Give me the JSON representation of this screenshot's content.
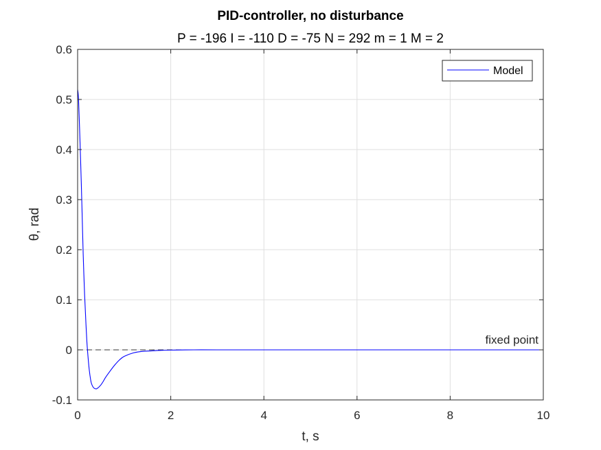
{
  "chart_data": {
    "type": "line",
    "title": "PID-controller, no disturbance",
    "subtitle": "P = -196 I = -110 D = -75 N = 292 m = 1 M = 2",
    "xlabel": "t, s",
    "ylabel": "θ, rad",
    "xlim": [
      0,
      10
    ],
    "ylim": [
      -0.1,
      0.6
    ],
    "xticks": [
      "0",
      "2",
      "4",
      "6",
      "8",
      "10"
    ],
    "yticks": [
      "-0.1",
      "0",
      "0.1",
      "0.2",
      "0.3",
      "0.4",
      "0.5",
      "0.6"
    ],
    "grid": true,
    "legend_position": "top-right",
    "series": [
      {
        "name": "Model",
        "color": "#0000ff",
        "x": [
          0,
          0.02,
          0.05,
          0.08,
          0.1,
          0.12,
          0.15,
          0.18,
          0.2,
          0.22,
          0.25,
          0.28,
          0.3,
          0.33,
          0.36,
          0.4,
          0.42,
          0.45,
          0.5,
          0.55,
          0.6,
          0.7,
          0.8,
          0.9,
          1.0,
          1.2,
          1.4,
          1.6,
          1.8,
          2.0,
          2.5,
          3.0,
          4.0,
          5.0,
          6.0,
          7.0,
          8.0,
          9.0,
          10.0
        ],
        "y": [
          0.52,
          0.5,
          0.42,
          0.33,
          0.26,
          0.19,
          0.11,
          0.05,
          0.015,
          -0.01,
          -0.04,
          -0.06,
          -0.068,
          -0.074,
          -0.077,
          -0.078,
          -0.077,
          -0.075,
          -0.07,
          -0.063,
          -0.055,
          -0.042,
          -0.03,
          -0.02,
          -0.013,
          -0.006,
          -0.003,
          -0.002,
          -0.001,
          -0.0005,
          0,
          0,
          0,
          0,
          0,
          0,
          0,
          0,
          0
        ]
      }
    ],
    "reference_line": {
      "y": 0,
      "style": "dashed",
      "color": "#333333",
      "label": "fixed point"
    }
  }
}
